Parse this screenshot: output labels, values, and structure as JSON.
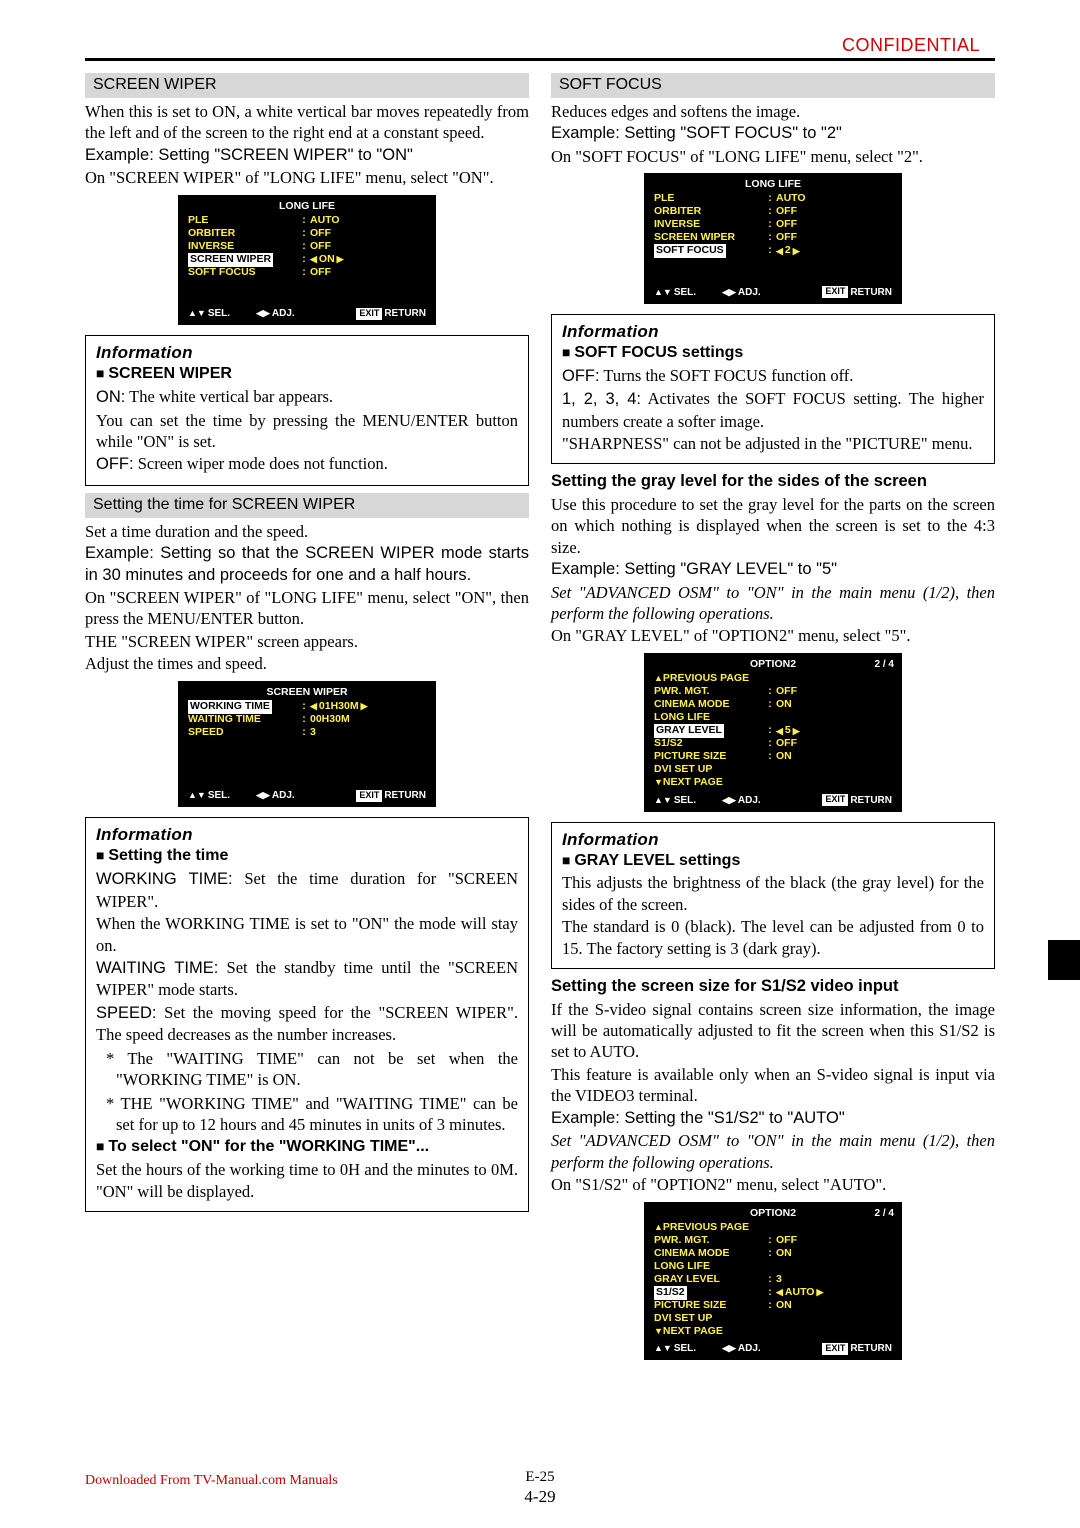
{
  "confidential": "CONFIDENTIAL",
  "left": {
    "h1": "SCREEN WIPER",
    "p1": "When this is set to ON, a white vertical bar moves repeatedly from the left and of the screen to the right end at a constant speed.",
    "ex1": "Example: Setting \"SCREEN WIPER\" to \"ON\"",
    "p2": "On \"SCREEN WIPER\" of \"LONG LIFE\" menu, select \"ON\".",
    "osd1": {
      "title": "LONG LIFE",
      "rows": [
        {
          "l": "PLE",
          "v": "AUTO"
        },
        {
          "l": "ORBITER",
          "v": "OFF"
        },
        {
          "l": "INVERSE",
          "v": "OFF"
        },
        {
          "l": "SCREEN WIPER",
          "v": "ON",
          "sel": true,
          "arrows": true
        },
        {
          "l": "SOFT FOCUS",
          "v": "OFF"
        }
      ]
    },
    "info1": {
      "title": "Information",
      "sub": "SCREEN WIPER",
      "l1a": "ON:",
      "l1b": " The white vertical bar appears.",
      "l2": "You can set the time by pressing the MENU/ENTER button while \"ON\" is set.",
      "l3a": "OFF:",
      "l3b": " Screen wiper mode does not function."
    },
    "h2": "Setting the time for SCREEN WIPER",
    "p3": "Set a time duration and the speed.",
    "ex2": "Example: Setting so that the SCREEN WIPER mode starts in 30 minutes and proceeds for one and a half hours.",
    "p4": "On \"SCREEN WIPER\" of \"LONG LIFE\" menu, select \"ON\", then press the MENU/ENTER button.",
    "p5": "THE \"SCREEN WIPER\" screen appears.",
    "p6": "Adjust the times and speed.",
    "osd2": {
      "title": "SCREEN WIPER",
      "rows": [
        {
          "l": "WORKING TIME",
          "v": "01H30M",
          "sel": true,
          "arrows": true
        },
        {
          "l": "WAITING TIME",
          "v": "00H30M"
        },
        {
          "l": "SPEED",
          "v": "3"
        }
      ]
    },
    "info2": {
      "title": "Information",
      "sub": "Setting the time",
      "w1a": "WORKING TIME:",
      "w1b": " Set the time duration for \"SCREEN WIPER\".",
      "w2": "When the WORKING TIME is set to \"ON\" the mode will stay on.",
      "w3a": "WAITING TIME:",
      "w3b": " Set the standby time until the \"SCREEN WIPER\" mode starts.",
      "w4a": "SPEED:",
      "w4b": " Set the moving speed for the  \"SCREEN WIPER\". The speed decreases as the number increases.",
      "n1": "* The \"WAITING TIME\" can not be set when the \"WORKING TIME\" is ON.",
      "n2": "* THE \"WORKING TIME\" and \"WAITING TIME\" can be set for up to 12 hours and 45 minutes in units of 3 minutes.",
      "sub2": "To select \"ON\" for the \"WORKING TIME\"...",
      "w5": "Set the hours of the working time to 0H and the minutes to 0M. \"ON\" will be displayed."
    }
  },
  "right": {
    "h1": "SOFT FOCUS",
    "p1": "Reduces edges and softens the image.",
    "ex1": "Example: Setting \"SOFT FOCUS\" to \"2\"",
    "p2": "On \"SOFT FOCUS\" of \"LONG LIFE\" menu, select \"2\".",
    "osd1": {
      "title": "LONG LIFE",
      "rows": [
        {
          "l": "PLE",
          "v": "AUTO"
        },
        {
          "l": "ORBITER",
          "v": "OFF"
        },
        {
          "l": "INVERSE",
          "v": "OFF"
        },
        {
          "l": "SCREEN WIPER",
          "v": "OFF"
        },
        {
          "l": "SOFT FOCUS",
          "v": "2",
          "sel": true,
          "arrows": true
        }
      ]
    },
    "info1": {
      "title": "Information",
      "sub": "SOFT FOCUS settings",
      "l1a": "OFF:",
      "l1b": " Turns the SOFT FOCUS function off.",
      "l2a": "1, 2, 3, 4:",
      "l2b": " Activates the SOFT FOCUS setting. The higher numbers create a softer image.",
      "l3": "\"SHARPNESS\" can not be adjusted  in the \"PICTURE\" menu."
    },
    "h2": "Setting the gray level for the sides of the screen",
    "p3": "Use this procedure to set the gray level for the parts on the screen on which nothing is displayed when the screen is set to the 4:3 size.",
    "ex2": "Example: Setting \"GRAY LEVEL\" to \"5\"",
    "adv": "Set \"ADVANCED OSM\" to \"ON\" in the main menu (1/2), then perform the following operations.",
    "p4": "On \"GRAY LEVEL\" of \"OPTION2\" menu, select \"5\".",
    "osd2": {
      "title": "OPTION2",
      "pager": "2 / 4",
      "prev": "PREVIOUS PAGE",
      "rows": [
        {
          "l": "PWR. MGT.",
          "v": "OFF"
        },
        {
          "l": "CINEMA MODE",
          "v": "ON"
        },
        {
          "l": "LONG LIFE",
          "v": ""
        },
        {
          "l": "GRAY LEVEL",
          "v": "5",
          "sel": true,
          "arrows": true
        },
        {
          "l": "S1/S2",
          "v": "OFF"
        },
        {
          "l": "PICTURE SIZE",
          "v": "ON"
        },
        {
          "l": "DVI SET UP",
          "v": ""
        }
      ],
      "next": "NEXT PAGE"
    },
    "info2": {
      "title": "Information",
      "sub": "GRAY LEVEL settings",
      "l1": "This adjusts the brightness of the black (the gray level) for the sides of the screen.",
      "l2": "The standard is 0 (black). The level can be adjusted from 0 to 15. The factory setting is 3 (dark gray)."
    },
    "h3": "Setting the screen size for S1/S2 video input",
    "p5": "If the S-video signal contains screen size information, the image will be automatically adjusted to fit the screen when this S1/S2 is set to AUTO.",
    "p6": "This feature is available only when an S-video signal is input via the VIDEO3 terminal.",
    "ex3": "Example: Setting the \"S1/S2\" to \"AUTO\"",
    "adv2": "Set \"ADVANCED OSM\" to \"ON\" in the main menu (1/2), then perform the following operations.",
    "p7": "On \"S1/S2\" of \"OPTION2\" menu, select \"AUTO\".",
    "osd3": {
      "title": "OPTION2",
      "pager": "2 / 4",
      "prev": "PREVIOUS PAGE",
      "rows": [
        {
          "l": "PWR. MGT.",
          "v": "OFF"
        },
        {
          "l": "CINEMA MODE",
          "v": "ON"
        },
        {
          "l": "LONG LIFE",
          "v": ""
        },
        {
          "l": "GRAY LEVEL",
          "v": "3"
        },
        {
          "l": "S1/S2",
          "v": "AUTO",
          "sel": true,
          "arrows": true
        },
        {
          "l": "PICTURE SIZE",
          "v": "ON"
        },
        {
          "l": "DVI SET UP",
          "v": ""
        }
      ],
      "next": "NEXT PAGE"
    }
  },
  "hints": {
    "sel": "SEL.",
    "adj": "ADJ.",
    "exit": "EXIT",
    "ret": "RETURN"
  },
  "footer": {
    "dl": "Downloaded From TV-Manual.com Manuals",
    "p1": "E-25",
    "p2": "4-29"
  }
}
